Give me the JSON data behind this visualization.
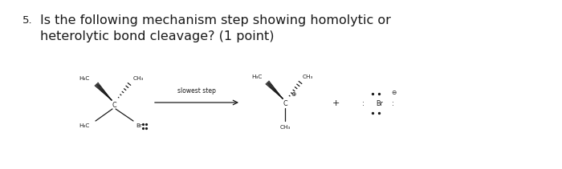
{
  "title_number": "5.",
  "title_text": "Is the following mechanism step showing homolytic or\nheterolytic bond cleavage? (1 point)",
  "title_fontsize": 11.5,
  "arrow_label": "slowest step",
  "bg_color": "#ffffff",
  "text_color": "#1a1a1a",
  "mol_fontsize": 5.8,
  "label_fontsize": 5.2
}
